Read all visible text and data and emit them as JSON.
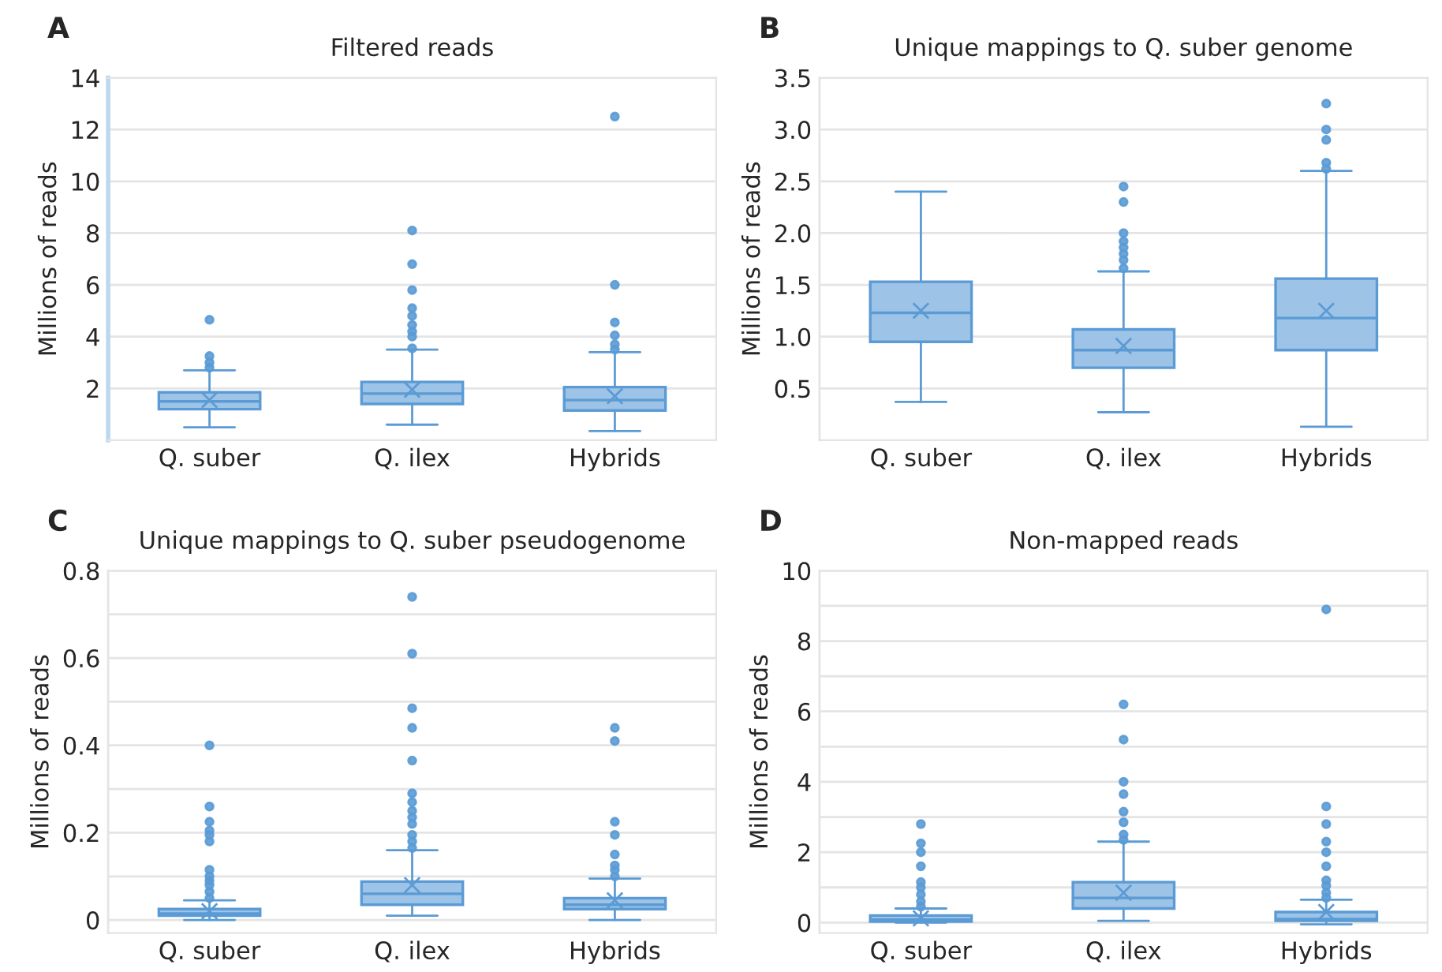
{
  "chart_data": [
    {
      "type": "box",
      "title": "Filtered reads",
      "ylabel": "Millions of reads",
      "annotations": [
        "A"
      ],
      "categories": [
        "Q. suber",
        "Q. ilex",
        "Hybrids"
      ],
      "color": "#9dc3e6",
      "grid": "y",
      "ylim": [
        0,
        14
      ],
      "yticks": [
        2,
        4,
        6,
        8,
        10,
        12,
        14
      ],
      "boxes": [
        {
          "low": 0.5,
          "q1": 1.2,
          "median": 1.5,
          "q3": 1.85,
          "high": 2.7,
          "mean": 1.55,
          "outliers": [
            2.8,
            3.0,
            3.25,
            4.65
          ]
        },
        {
          "low": 0.6,
          "q1": 1.4,
          "median": 1.8,
          "q3": 2.25,
          "high": 3.5,
          "mean": 1.95,
          "outliers": [
            3.55,
            4.0,
            4.2,
            4.45,
            4.8,
            5.1,
            5.8,
            6.8,
            8.1
          ]
        },
        {
          "low": 0.35,
          "q1": 1.15,
          "median": 1.55,
          "q3": 2.05,
          "high": 3.4,
          "mean": 1.7,
          "outliers": [
            3.5,
            3.7,
            4.05,
            4.55,
            6.0,
            12.5
          ]
        }
      ]
    },
    {
      "type": "box",
      "title": "Unique mappings to Q. suber genome",
      "ylabel": "Millions of reads",
      "annotations": [
        "B"
      ],
      "categories": [
        "Q. suber",
        "Q. ilex",
        "Hybrids"
      ],
      "color": "#9dc3e6",
      "grid": "y",
      "ylim": [
        0,
        3.5
      ],
      "yticks": [
        {
          "value": 0.5,
          "label": "0.5"
        },
        {
          "value": 1.0,
          "label": "1.0"
        },
        {
          "value": 1.5,
          "label": "1.5"
        },
        {
          "value": 2.0,
          "label": "2.0"
        },
        {
          "value": 2.5,
          "label": "2.5"
        },
        {
          "value": 3.0,
          "label": "3.0"
        },
        {
          "value": 3.5,
          "label": "3.5"
        }
      ],
      "boxes": [
        {
          "low": 0.37,
          "q1": 0.95,
          "median": 1.23,
          "q3": 1.53,
          "high": 2.4,
          "mean": 1.25
        },
        {
          "low": 0.27,
          "q1": 0.7,
          "median": 0.87,
          "q3": 1.07,
          "high": 1.63,
          "mean": 0.91,
          "outliers": [
            1.66,
            1.74,
            1.8,
            1.86,
            1.92,
            2.0,
            2.3,
            2.45
          ]
        },
        {
          "low": 0.13,
          "q1": 0.87,
          "median": 1.18,
          "q3": 1.56,
          "high": 2.6,
          "mean": 1.25,
          "outliers": [
            2.62,
            2.68,
            2.9,
            3.0,
            3.25
          ]
        }
      ]
    },
    {
      "type": "box",
      "title": "Unique mappings to Q. suber pseudogenome",
      "ylabel": "Millions of reads",
      "annotations": [
        "C"
      ],
      "categories": [
        "Q. suber",
        "Q. ilex",
        "Hybrids"
      ],
      "color": "#9dc3e6",
      "grid": "y",
      "ylim": [
        -0.03,
        0.8
      ],
      "yticks": [
        0,
        {
          "value": 0.1,
          "label": null
        },
        0.2,
        {
          "value": 0.3,
          "label": null
        },
        0.4,
        {
          "value": 0.5,
          "label": null
        },
        0.6,
        {
          "value": 0.7,
          "label": null
        },
        0.8
      ],
      "boxes": [
        {
          "low": 0.0,
          "q1": 0.01,
          "median": 0.015,
          "q3": 0.025,
          "high": 0.045,
          "mean": 0.02,
          "outliers": [
            0.05,
            0.065,
            0.08,
            0.09,
            0.1,
            0.115,
            0.18,
            0.195,
            0.205,
            0.225,
            0.26,
            0.4
          ]
        },
        {
          "low": 0.01,
          "q1": 0.035,
          "median": 0.06,
          "q3": 0.088,
          "high": 0.16,
          "mean": 0.08,
          "outliers": [
            0.165,
            0.18,
            0.195,
            0.22,
            0.235,
            0.25,
            0.27,
            0.29,
            0.365,
            0.44,
            0.485,
            0.61,
            0.74
          ]
        },
        {
          "low": 0.0,
          "q1": 0.025,
          "median": 0.035,
          "q3": 0.05,
          "high": 0.095,
          "mean": 0.045,
          "outliers": [
            0.1,
            0.115,
            0.125,
            0.15,
            0.195,
            0.225,
            0.41,
            0.44
          ]
        }
      ]
    },
    {
      "type": "box",
      "title": "Non-mapped reads",
      "ylabel": "Millions of reads",
      "annotations": [
        "D"
      ],
      "categories": [
        "Q. suber",
        "Q. ilex",
        "Hybrids"
      ],
      "color": "#9dc3e6",
      "grid": "y",
      "ylim": [
        -0.3,
        10
      ],
      "yticks": [
        0,
        {
          "value": 1,
          "label": null
        },
        2,
        {
          "value": 3,
          "label": null
        },
        4,
        {
          "value": 5,
          "label": null
        },
        6,
        {
          "value": 7,
          "label": null
        },
        8,
        {
          "value": 9,
          "label": null
        },
        10
      ],
      "boxes": [
        {
          "low": 0.0,
          "q1": 0.03,
          "median": 0.08,
          "q3": 0.2,
          "high": 0.4,
          "mean": 0.12,
          "outliers": [
            0.45,
            0.6,
            0.8,
            1.0,
            1.15,
            1.6,
            2.0,
            2.25,
            2.8
          ]
        },
        {
          "low": 0.05,
          "q1": 0.4,
          "median": 0.7,
          "q3": 1.15,
          "high": 2.3,
          "mean": 0.85,
          "outliers": [
            2.35,
            2.5,
            2.85,
            3.15,
            3.65,
            4.0,
            5.2,
            6.2
          ]
        },
        {
          "low": -0.05,
          "q1": 0.05,
          "median": 0.1,
          "q3": 0.3,
          "high": 0.65,
          "mean": 0.3,
          "outliers": [
            0.7,
            0.85,
            1.05,
            1.2,
            1.6,
            2.0,
            2.3,
            2.8,
            3.3,
            8.9
          ]
        }
      ]
    }
  ]
}
